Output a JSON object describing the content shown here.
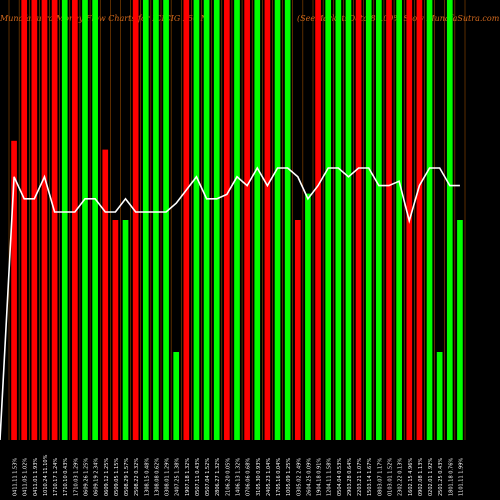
{
  "title": "MunafaSutra Money Flow Charts for ICICIG 250 N",
  "subtitle": "(SeeMarketsData 80.00% Stow MunafaSutra.com",
  "chart_data": {
    "type": "bar",
    "colors": {
      "background": "#000000",
      "up": "#00ff00",
      "down": "#ff0000",
      "line": "#ffffff",
      "tick": "#ffffff",
      "header": "#d2691e",
      "edge": "#b35a00"
    },
    "ylim": [
      0,
      100
    ],
    "categories": [
      "0411.11 1.53%",
      "0411.05 1.02%",
      "0411.01 1.93%",
      "1010.24 11.10%",
      "1710.17 1.24%",
      "1710.10 0.43%",
      "1710.03 1.29%",
      "0609.26 1.25%",
      "0609.19 2.34%",
      "0609.12 1.25%",
      "0509.05 1.15%",
      "0508.29 1.57%",
      "2508.22 0.32%",
      "1308.15 0.48%",
      "1308.08 0.62%",
      "0308.01 1.29%",
      "2407.25 1.38%",
      "1907.18 1.32%",
      "0507.11 0.43%",
      "0507.04 1.52%",
      "2806.27 1.32%",
      "2106.20 0.05%",
      "1406.13 1.32%",
      "0706.06 0.68%",
      "3105.30 0.93%",
      "2405.23 1.04%",
      "1705.16 0.04%",
      "1005.09 1.25%",
      "0305.02 2.49%",
      "2604.25 0.09%",
      "1904.18 0.91%",
      "1204.11 1.58%",
      "0504.04 0.53%",
      "2903.28 0.64%",
      "2203.21 1.07%",
      "1503.14 1.67%",
      "0803.07 1.17%",
      "0103.01 1.52%",
      "2302.22 0.13%",
      "1602.15 4.96%",
      "0902.08 1.13%",
      "0202.01 1.92%",
      "2501.25 0.43%",
      "1801.18 0.76%",
      "1101.11 1.99%"
    ],
    "series": [
      {
        "values": [
          68,
          100,
          100,
          100,
          100,
          100,
          100,
          100,
          100,
          66,
          50,
          50,
          100,
          100,
          100,
          100,
          20,
          100,
          100,
          100,
          100,
          100,
          100,
          100,
          100,
          100,
          100,
          100,
          50,
          56,
          100,
          100,
          100,
          100,
          100,
          100,
          100,
          100,
          100,
          100,
          100,
          100,
          20,
          100,
          50
        ]
      },
      {
        "values": [
          22,
          27,
          27,
          22,
          30,
          30,
          30,
          27,
          27,
          30,
          30,
          27,
          30,
          30,
          30,
          30,
          28,
          25,
          22,
          27,
          27,
          26,
          22,
          24,
          20,
          24,
          20,
          20,
          22,
          27,
          24,
          20,
          20,
          22,
          20,
          20,
          24,
          24,
          23,
          32,
          24,
          20,
          20,
          24,
          24
        ]
      }
    ],
    "directions": [
      "down",
      "down",
      "down",
      "down",
      "down",
      "up",
      "down",
      "up",
      "up",
      "down",
      "down",
      "up",
      "down",
      "up",
      "up",
      "up",
      "up",
      "down",
      "up",
      "up",
      "up",
      "down",
      "up",
      "down",
      "up",
      "down",
      "up",
      "up",
      "down",
      "up",
      "down",
      "up",
      "up",
      "up",
      "down",
      "up",
      "up",
      "down",
      "up",
      "down",
      "down",
      "up",
      "up",
      "up",
      "up"
    ]
  }
}
